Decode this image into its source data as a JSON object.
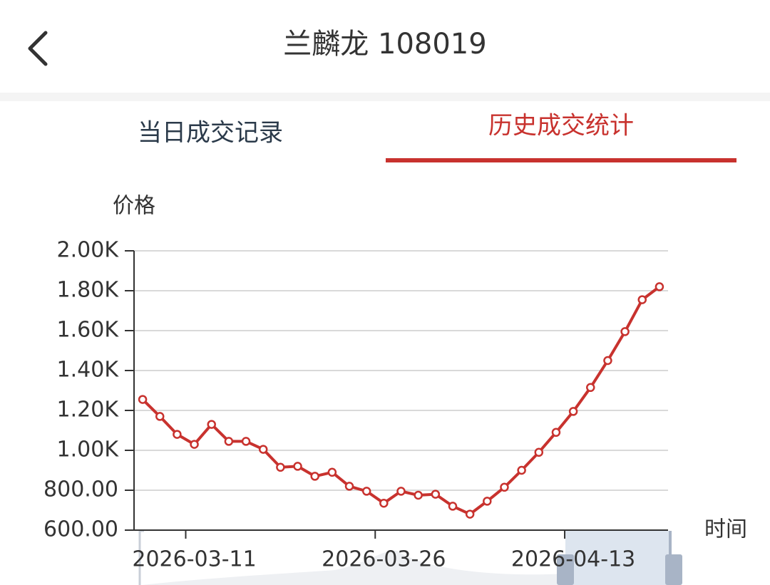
{
  "header": {
    "title": "兰麟龙 108019"
  },
  "tabs": [
    "当日成交记录",
    "历史成交统计"
  ],
  "active_tab": 1,
  "chart_data": {
    "type": "line",
    "y_label": "价格",
    "x_label": "时间",
    "categories": [
      null,
      null,
      null,
      "2026-03-11",
      null,
      null,
      null,
      null,
      null,
      null,
      null,
      null,
      null,
      null,
      "2026-03-26",
      null,
      null,
      null,
      null,
      null,
      null,
      null,
      null,
      null,
      null,
      "2026-04-13",
      null,
      null,
      null,
      null,
      null
    ],
    "values": [
      1255,
      1170,
      1080,
      1030,
      1130,
      1045,
      1045,
      1005,
      915,
      920,
      870,
      890,
      820,
      795,
      735,
      795,
      775,
      780,
      720,
      680,
      745,
      815,
      900,
      990,
      1090,
      1195,
      1315,
      1450,
      1595,
      1755,
      1820
    ],
    "color": "#c8322e",
    "ylim": [
      600,
      2000
    ],
    "yticks": [
      {
        "value": 600,
        "label": "600.00"
      },
      {
        "value": 800,
        "label": "800.00"
      },
      {
        "value": 1000,
        "label": "1.00K"
      },
      {
        "value": 1200,
        "label": "1.20K"
      },
      {
        "value": 1400,
        "label": "1.40K"
      },
      {
        "value": 1600,
        "label": "1.60K"
      },
      {
        "value": 1800,
        "label": "1.80K"
      },
      {
        "value": 2000,
        "label": "2.00K"
      }
    ],
    "grid": true
  }
}
